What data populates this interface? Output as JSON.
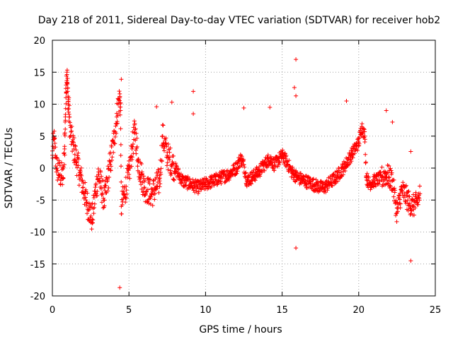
{
  "chart_data": {
    "type": "scatter",
    "title": "Day 218 of 2011, Sidereal Day-to-day VTEC variation (SDTVAR) for receiver hob2",
    "xlabel": "GPS time / hours",
    "ylabel": "SDTVAR / TECUs",
    "xlim": [
      0,
      25
    ],
    "ylim": [
      -20,
      20
    ],
    "xticks": [
      0,
      5,
      10,
      15,
      20,
      25
    ],
    "yticks": [
      -20,
      -15,
      -10,
      -5,
      0,
      5,
      10,
      15,
      20
    ],
    "grid": true,
    "marker": "+",
    "series": [
      {
        "name": "hob2",
        "color": "#ff0000",
        "x": [
          0.0,
          0.1,
          0.2,
          0.3,
          0.5,
          0.7,
          0.8,
          0.85,
          0.9,
          0.95,
          1.0,
          1.05,
          1.1,
          1.2,
          1.4,
          1.6,
          1.8,
          2.0,
          2.2,
          2.4,
          2.6,
          2.8,
          3.0,
          3.2,
          3.4,
          3.6,
          3.8,
          4.0,
          4.2,
          4.3,
          4.4,
          4.45,
          4.5,
          4.7,
          5.0,
          5.2,
          5.4,
          5.6,
          5.8,
          6.0,
          6.5,
          7.0,
          7.2,
          7.5,
          8.0,
          8.5,
          9.0,
          9.5,
          10.0,
          10.5,
          11.0,
          11.5,
          12.0,
          12.3,
          12.5,
          12.7,
          13.0,
          13.5,
          14.0,
          14.2,
          14.5,
          15.0,
          15.3,
          15.6,
          15.8,
          16.0,
          16.5,
          17.0,
          17.5,
          17.8,
          18.0,
          18.5,
          19.0,
          19.5,
          20.0,
          20.2,
          20.4,
          20.5,
          20.7,
          21.0,
          21.5,
          21.8,
          22.0,
          22.2,
          22.5,
          22.8,
          23.0,
          23.2,
          23.5,
          23.8,
          24.0
        ],
        "y": [
          2.0,
          4.5,
          2.0,
          0.0,
          -1.0,
          -1.5,
          3.0,
          8.0,
          13.0,
          15.0,
          12.0,
          10.0,
          8.0,
          5.0,
          3.0,
          1.0,
          -1.0,
          -3.0,
          -5.0,
          -6.5,
          -8.0,
          -4.0,
          -1.0,
          -3.0,
          -5.0,
          -2.0,
          1.0,
          4.0,
          8.0,
          10.0,
          11.0,
          9.0,
          -6.0,
          -4.0,
          -1.0,
          3.0,
          6.0,
          1.0,
          -1.0,
          -3.0,
          -4.0,
          -2.0,
          5.0,
          2.0,
          0.0,
          -2.0,
          -2.5,
          -3.0,
          -2.5,
          -2.0,
          -1.5,
          -1.0,
          0.0,
          1.5,
          0.5,
          -2.0,
          -1.5,
          -0.5,
          1.0,
          1.5,
          0.5,
          2.0,
          1.0,
          -0.5,
          -1.0,
          -1.5,
          -2.0,
          -2.5,
          -3.0,
          -3.0,
          -2.5,
          -1.5,
          0.0,
          2.0,
          4.0,
          6.5,
          5.0,
          -1.5,
          -2.5,
          -2.0,
          -1.5,
          -1.0,
          -1.5,
          -2.0,
          -7.0,
          -3.5,
          -4.0,
          -5.0,
          -6.0,
          -5.5,
          -4.0
        ],
        "outliers_x": [
          0.8,
          4.4,
          4.5,
          6.8,
          7.8,
          9.2,
          9.2,
          12.5,
          14.2,
          15.8,
          15.9,
          15.9,
          15.9,
          19.2,
          21.8,
          22.2,
          23.4,
          23.4
        ],
        "outliers_y": [
          5.3,
          -18.7,
          13.9,
          9.6,
          10.3,
          12.0,
          8.5,
          9.4,
          9.5,
          12.6,
          17.0,
          11.3,
          -12.5,
          10.5,
          9.0,
          7.2,
          2.6,
          -14.5
        ]
      }
    ]
  }
}
